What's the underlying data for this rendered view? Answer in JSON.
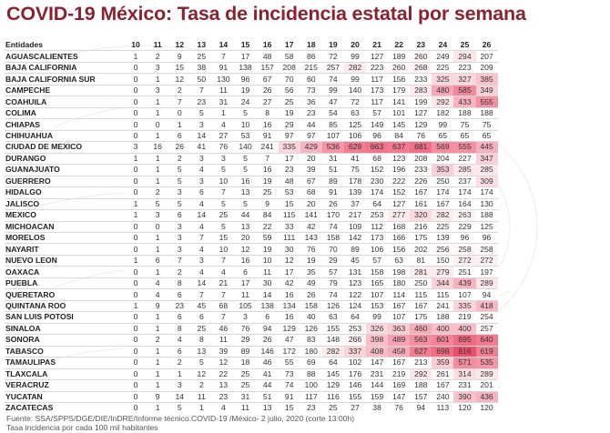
{
  "title": "COVID-19 México: Tasa de incidencia estatal por semana",
  "chart_data": {
    "type": "heatmap",
    "title": "COVID-19 México: Tasa de incidencia estatal por semana",
    "row_header": "Entidades",
    "weeks": [
      "10",
      "11",
      "12",
      "13",
      "14",
      "15",
      "16",
      "17",
      "18",
      "19",
      "20",
      "21",
      "22",
      "23",
      "24",
      "25",
      "26"
    ],
    "rows": [
      {
        "state": "AGUASCALIENTES",
        "values": [
          1,
          2,
          9,
          25,
          7,
          17,
          48,
          58,
          86,
          72,
          99,
          127,
          189,
          260,
          249,
          294,
          207
        ]
      },
      {
        "state": "BAJA CALIFORNIA",
        "values": [
          0,
          3,
          15,
          38,
          91,
          138,
          157,
          208,
          215,
          257,
          282,
          223,
          260,
          268,
          225,
          223,
          209
        ]
      },
      {
        "state": "BAJA CALIFORNIA SUR",
        "values": [
          0,
          1,
          12,
          50,
          130,
          96,
          67,
          70,
          60,
          74,
          99,
          117,
          156,
          233,
          325,
          327,
          385
        ]
      },
      {
        "state": "CAMPECHE",
        "values": [
          0,
          3,
          2,
          7,
          11,
          19,
          26,
          56,
          73,
          99,
          140,
          173,
          179,
          283,
          480,
          585,
          349
        ]
      },
      {
        "state": "COAHUILA",
        "values": [
          0,
          1,
          7,
          23,
          31,
          24,
          27,
          25,
          36,
          47,
          72,
          117,
          141,
          199,
          292,
          433,
          555
        ]
      },
      {
        "state": "COLIMA",
        "values": [
          0,
          1,
          0,
          5,
          1,
          5,
          8,
          19,
          23,
          54,
          63,
          57,
          101,
          127,
          182,
          188,
          188
        ]
      },
      {
        "state": "CHIAPAS",
        "values": [
          0,
          0,
          1,
          3,
          4,
          10,
          16,
          29,
          44,
          85,
          125,
          149,
          145,
          129,
          99,
          75,
          75
        ]
      },
      {
        "state": "CHIHUAHUA",
        "values": [
          0,
          1,
          6,
          14,
          27,
          53,
          91,
          97,
          97,
          107,
          106,
          96,
          84,
          76,
          65,
          65,
          65
        ]
      },
      {
        "state": "CIUDAD DE MEXICO",
        "values": [
          3,
          16,
          26,
          41,
          76,
          140,
          241,
          335,
          429,
          536,
          629,
          663,
          637,
          681,
          569,
          555,
          445
        ]
      },
      {
        "state": "DURANGO",
        "values": [
          1,
          1,
          2,
          3,
          3,
          5,
          7,
          17,
          20,
          31,
          41,
          68,
          123,
          208,
          204,
          227,
          347
        ]
      },
      {
        "state": "GUANAJUATO",
        "values": [
          0,
          1,
          5,
          4,
          5,
          5,
          16,
          23,
          39,
          51,
          75,
          152,
          196,
          233,
          353,
          285,
          285
        ]
      },
      {
        "state": "GUERRERO",
        "values": [
          0,
          1,
          5,
          3,
          10,
          16,
          19,
          48,
          67,
          89,
          178,
          230,
          222,
          226,
          250,
          237,
          309
        ]
      },
      {
        "state": "HIDALGO",
        "values": [
          0,
          2,
          3,
          6,
          7,
          13,
          25,
          53,
          68,
          91,
          139,
          174,
          152,
          167,
          174,
          174,
          174
        ]
      },
      {
        "state": "JALISCO",
        "values": [
          1,
          5,
          5,
          4,
          5,
          5,
          9,
          15,
          20,
          26,
          37,
          64,
          127,
          161,
          167,
          164,
          130
        ]
      },
      {
        "state": "MEXICO",
        "values": [
          1,
          3,
          6,
          14,
          25,
          44,
          84,
          115,
          141,
          170,
          217,
          253,
          277,
          320,
          282,
          263,
          188
        ]
      },
      {
        "state": "MICHOACAN",
        "values": [
          0,
          0,
          3,
          4,
          5,
          13,
          22,
          33,
          42,
          74,
          109,
          112,
          168,
          216,
          225,
          229,
          125
        ]
      },
      {
        "state": "MORELOS",
        "values": [
          0,
          1,
          3,
          7,
          15,
          20,
          59,
          111,
          143,
          158,
          142,
          173,
          166,
          175,
          139,
          96,
          96
        ]
      },
      {
        "state": "NAYARIT",
        "values": [
          0,
          1,
          3,
          4,
          10,
          12,
          19,
          30,
          76,
          70,
          89,
          106,
          156,
          202,
          256,
          258,
          258
        ]
      },
      {
        "state": "NUEVO LEON",
        "values": [
          1,
          6,
          7,
          3,
          7,
          16,
          10,
          12,
          19,
          29,
          45,
          57,
          63,
          81,
          150,
          272,
          272
        ]
      },
      {
        "state": "OAXACA",
        "values": [
          0,
          1,
          2,
          4,
          4,
          6,
          11,
          17,
          35,
          57,
          131,
          158,
          198,
          281,
          279,
          251,
          197
        ]
      },
      {
        "state": "PUEBLA",
        "values": [
          0,
          4,
          8,
          14,
          21,
          17,
          30,
          42,
          49,
          79,
          123,
          165,
          180,
          250,
          344,
          439,
          289
        ]
      },
      {
        "state": "QUERETARO",
        "values": [
          0,
          4,
          6,
          7,
          7,
          11,
          14,
          16,
          26,
          74,
          122,
          107,
          114,
          115,
          115,
          107,
          94
        ]
      },
      {
        "state": "QUINTANA ROO",
        "values": [
          1,
          9,
          23,
          45,
          68,
          105,
          138,
          134,
          158,
          126,
          124,
          153,
          167,
          167,
          241,
          335,
          418
        ]
      },
      {
        "state": "SAN LUIS POTOSI",
        "values": [
          0,
          1,
          6,
          6,
          7,
          3,
          6,
          16,
          40,
          63,
          64,
          99,
          107,
          175,
          188,
          219,
          254
        ]
      },
      {
        "state": "SINALOA",
        "values": [
          0,
          1,
          8,
          25,
          46,
          76,
          94,
          129,
          126,
          155,
          253,
          326,
          363,
          460,
          400,
          400,
          257
        ]
      },
      {
        "state": "SONORA",
        "values": [
          0,
          2,
          4,
          8,
          11,
          29,
          26,
          47,
          83,
          148,
          266,
          398,
          489,
          563,
          601,
          695,
          640
        ]
      },
      {
        "state": "TABASCO",
        "values": [
          0,
          1,
          6,
          13,
          39,
          89,
          146,
          172,
          180,
          282,
          337,
          408,
          458,
          627,
          698,
          816,
          619
        ]
      },
      {
        "state": "TAMAULIPAS",
        "values": [
          0,
          1,
          2,
          5,
          12,
          18,
          46,
          55,
          69,
          64,
          102,
          147,
          167,
          213,
          359,
          571,
          535
        ]
      },
      {
        "state": "TLAXCALA",
        "values": [
          0,
          1,
          1,
          12,
          22,
          25,
          41,
          73,
          88,
          145,
          176,
          231,
          219,
          292,
          261,
          314,
          289
        ]
      },
      {
        "state": "VERACRUZ",
        "values": [
          0,
          1,
          3,
          2,
          13,
          25,
          44,
          74,
          100,
          129,
          146,
          144,
          169,
          188,
          167,
          231,
          201
        ]
      },
      {
        "state": "YUCATAN",
        "values": [
          0,
          9,
          14,
          11,
          23,
          31,
          51,
          91,
          117,
          116,
          155,
          159,
          147,
          157,
          240,
          390,
          436
        ]
      },
      {
        "state": "ZACATECAS",
        "values": [
          0,
          1,
          5,
          1,
          4,
          11,
          13,
          15,
          23,
          25,
          27,
          38,
          76,
          94,
          113,
          120,
          120
        ]
      }
    ]
  },
  "footer": {
    "source": "Fuente: SSA/SPPS/DGE/DIE/InDRE/Informe técnico.COVID-19 /México- 2 julio, 2020 (corte 13:00h)",
    "note": "Tasa incidencia por cada 100 mil habitantes"
  },
  "colors": {
    "title": "#8a2330",
    "heat_low": "#ffffff",
    "heat_high": "#e8274a"
  }
}
